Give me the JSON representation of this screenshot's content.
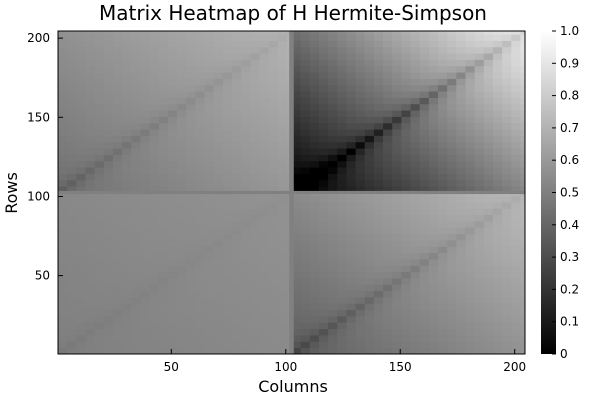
{
  "chart_data": {
    "type": "heatmap",
    "title": "Matrix Heatmap of H Hermite-Simpson",
    "xlabel": "Columns",
    "ylabel": "Rows",
    "colormap": "grayscale",
    "color_low": "#000000",
    "color_high": "#ffffff",
    "xlim": [
      1,
      204
    ],
    "ylim": [
      1,
      204
    ],
    "xticks": [
      50,
      100,
      150,
      200
    ],
    "yticks": [
      50,
      100,
      150,
      200
    ],
    "colorbar": {
      "min": 0,
      "max": 1,
      "ticks": [
        "0",
        "0.1",
        "0.2",
        "0.3",
        "0.4",
        "0.5",
        "0.6",
        "0.7",
        "0.8",
        "0.9",
        "1.0"
      ]
    },
    "block_boundary": 102,
    "blocks": [
      {
        "rows": [
          103,
          204
        ],
        "cols": [
          1,
          102
        ],
        "min": 0.45,
        "max": 0.72
      },
      {
        "rows": [
          103,
          204
        ],
        "cols": [
          103,
          204
        ],
        "min": 0.02,
        "max": 0.97
      },
      {
        "rows": [
          1,
          102
        ],
        "cols": [
          1,
          102
        ],
        "min": 0.5,
        "max": 0.58
      },
      {
        "rows": [
          1,
          102
        ],
        "cols": [
          103,
          204
        ],
        "min": 0.38,
        "max": 0.75
      }
    ],
    "boundary_value": 0.5
  }
}
